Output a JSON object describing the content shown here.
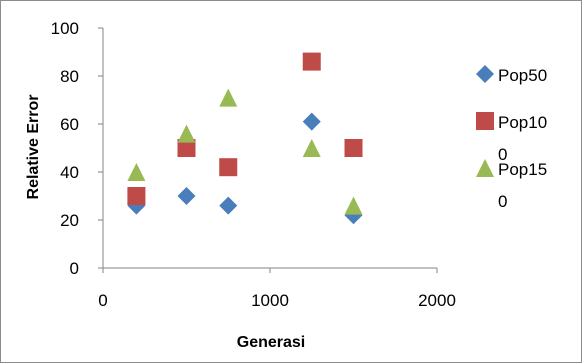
{
  "chart_data": {
    "type": "scatter",
    "xlabel": "Generasi",
    "ylabel": "Relative Error",
    "xlim": [
      0,
      2000
    ],
    "ylim": [
      0,
      100
    ],
    "xticks": [
      0,
      1000,
      2000
    ],
    "yticks": [
      0,
      20,
      40,
      60,
      80,
      100
    ],
    "legend_position": "right",
    "grid": false,
    "series": [
      {
        "name": "Pop50",
        "marker": "diamond",
        "color": "#4a7ebb",
        "points": [
          [
            200,
            26
          ],
          [
            500,
            30
          ],
          [
            750,
            26
          ],
          [
            1250,
            61
          ],
          [
            1500,
            22
          ]
        ]
      },
      {
        "name": "Pop100",
        "marker": "square",
        "color": "#be4b48",
        "points": [
          [
            200,
            30
          ],
          [
            500,
            50
          ],
          [
            750,
            42
          ],
          [
            1250,
            86
          ],
          [
            1500,
            50
          ]
        ]
      },
      {
        "name": "Pop150",
        "marker": "triangle",
        "color": "#98b954",
        "points": [
          [
            200,
            40
          ],
          [
            500,
            56
          ],
          [
            750,
            71
          ],
          [
            1250,
            50
          ],
          [
            1500,
            26
          ]
        ]
      }
    ],
    "legend_lines": [
      [
        "Pop50"
      ],
      [
        "Pop10",
        "0"
      ],
      [
        "Pop15",
        "0"
      ]
    ]
  }
}
